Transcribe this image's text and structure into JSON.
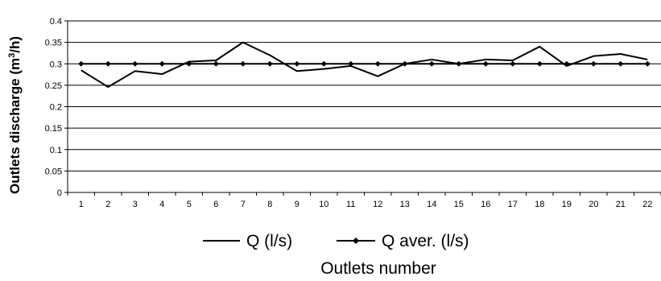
{
  "chart_data": {
    "type": "line",
    "xlabel": "Outlets number",
    "ylabel": "Outlets discharge (m³/h)",
    "ylabel_parts": {
      "pre": "Outlets discharge (m",
      "sup": "3",
      "post": "/h)"
    },
    "ylim": [
      0,
      0.4
    ],
    "yticks": [
      "0",
      "0.05",
      "0.1",
      "0.15",
      "0.2",
      "0.25",
      "0.3",
      "0.35",
      "0.4"
    ],
    "ytick_values": [
      0,
      0.05,
      0.1,
      0.15,
      0.2,
      0.25,
      0.3,
      0.35,
      0.4
    ],
    "categories": [
      "1",
      "2",
      "3",
      "4",
      "5",
      "6",
      "7",
      "8",
      "9",
      "10",
      "11",
      "12",
      "13",
      "14",
      "15",
      "16",
      "17",
      "18",
      "19",
      "20",
      "21",
      "22"
    ],
    "grid": true,
    "legend_position": "bottom",
    "series": [
      {
        "name": "Q (l/s)",
        "marker": "none",
        "color": "#000000",
        "values": [
          0.285,
          0.246,
          0.283,
          0.276,
          0.305,
          0.308,
          0.35,
          0.32,
          0.283,
          0.288,
          0.295,
          0.271,
          0.3,
          0.31,
          0.3,
          0.31,
          0.308,
          0.34,
          0.295,
          0.318,
          0.323,
          0.31
        ]
      },
      {
        "name": "Q aver. (l/s)",
        "marker": "diamond",
        "color": "#000000",
        "values": [
          0.3,
          0.3,
          0.3,
          0.3,
          0.3,
          0.3,
          0.3,
          0.3,
          0.3,
          0.3,
          0.3,
          0.3,
          0.3,
          0.3,
          0.3,
          0.3,
          0.3,
          0.3,
          0.3,
          0.3,
          0.3,
          0.3
        ]
      }
    ]
  }
}
